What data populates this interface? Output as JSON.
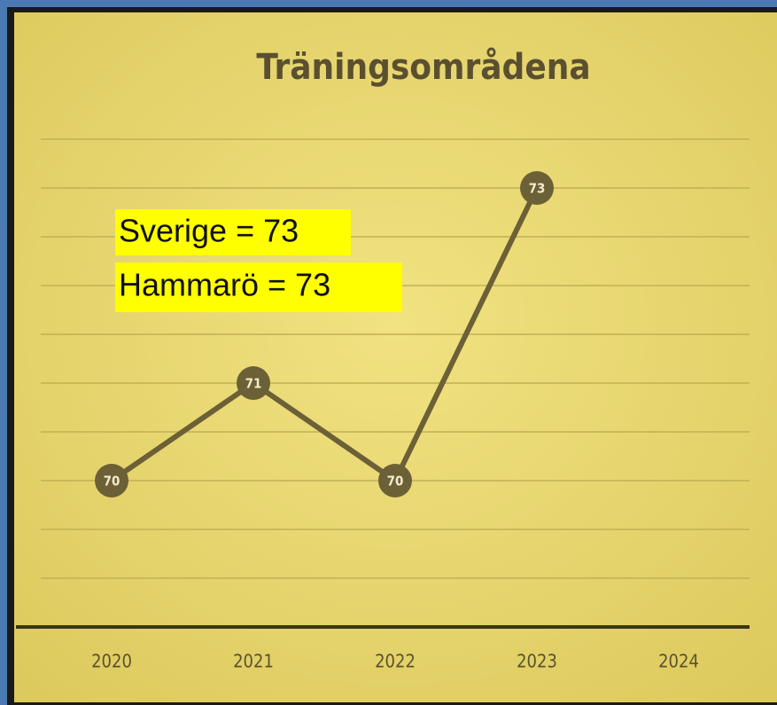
{
  "chart_data": {
    "type": "line",
    "title": "Träningsområdena",
    "annotations": [
      "Sverige = 73",
      "Hammarö = 73"
    ],
    "categories": [
      "2020",
      "2021",
      "2022",
      "2023",
      "2024"
    ],
    "values": [
      70,
      71,
      70,
      73,
      null
    ],
    "color": "#6b6036",
    "ylim": [
      68.5,
      73.5
    ],
    "yticks": [
      68.5,
      69,
      69.5,
      70,
      70.5,
      71,
      71.5,
      72,
      72.5,
      73,
      73.5
    ],
    "grid": true
  }
}
